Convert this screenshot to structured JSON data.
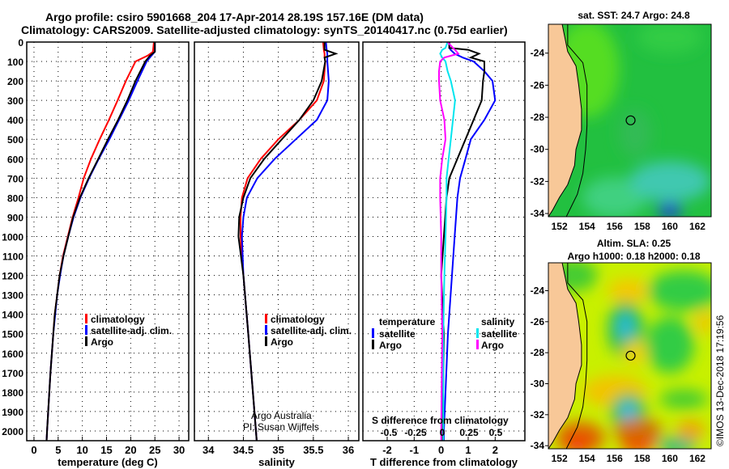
{
  "title_line1": "Argo profile: csiro 5901668_204 17-Apr-2014 28.19S 157.16E (DM data)",
  "title_line2": "Climatology: CARS2009. Satellite-adjusted climatology: synTS_20140417.nc (0.75d earlier)",
  "credit": "Argo Australia",
  "pi": "PI: Susan Wijffels",
  "stamp": "©IMOS 13-Dec-2018 17:19:56",
  "colors": {
    "climatology": "#ff0000",
    "satellite": "#0000ff",
    "argo": "#000000",
    "sal_sat": "#00e5ee",
    "sal_argo": "#ff00ff"
  },
  "chart_data": [
    {
      "type": "line",
      "xlabel": "temperature (deg C)",
      "xlim": [
        -1.5,
        32
      ],
      "ylim": [
        2050,
        0
      ],
      "xticks": [
        0,
        5,
        10,
        15,
        20,
        25,
        30
      ],
      "yticks": [
        0,
        100,
        200,
        300,
        400,
        500,
        600,
        700,
        800,
        900,
        1000,
        1100,
        1200,
        1300,
        1400,
        1500,
        1600,
        1700,
        1800,
        1900,
        2000
      ],
      "legend": [
        "climatology",
        "satellite-adj. clim.",
        "Argo"
      ],
      "depth": [
        0,
        50,
        70,
        100,
        200,
        300,
        400,
        500,
        600,
        700,
        800,
        900,
        1000,
        1100,
        1200,
        1300,
        1400,
        1500,
        1700,
        2000,
        2050
      ],
      "series": [
        {
          "name": "climatology",
          "color": "#ff0000",
          "values": [
            24.8,
            24.6,
            23.5,
            21,
            19,
            17.3,
            15.5,
            13.6,
            11.8,
            10.3,
            9.2,
            8,
            7,
            6,
            5.3,
            4.8,
            4.3,
            4,
            3.4,
            2.7,
            2.6
          ]
        },
        {
          "name": "satellite-adj. clim.",
          "color": "#0000ff",
          "values": [
            25,
            25,
            24.3,
            23.3,
            21.4,
            19.6,
            17.6,
            15.6,
            13.4,
            11.4,
            9.6,
            8.2,
            7.1,
            6.1,
            5.4,
            4.8,
            4.4,
            4,
            3.4,
            2.7,
            2.6
          ]
        },
        {
          "name": "Argo",
          "color": "#000000",
          "values": [
            25,
            25,
            24,
            23,
            21,
            19.3,
            17.4,
            15.3,
            13.3,
            11.3,
            9.5,
            8.1,
            7.1,
            6.1,
            5.3,
            4.8,
            4.3,
            4,
            3.4,
            2.7,
            2.6
          ]
        }
      ]
    },
    {
      "type": "line",
      "xlabel": "salinity",
      "xlim": [
        33.8,
        36.15
      ],
      "ylim": [
        2050,
        0
      ],
      "xticks": [
        34,
        34.5,
        35,
        35.5,
        36
      ],
      "legend": [
        "climatology",
        "satellite-adj. clim.",
        "Argo"
      ],
      "depth": [
        0,
        40,
        60,
        80,
        100,
        200,
        300,
        400,
        500,
        600,
        700,
        800,
        900,
        1000,
        1200,
        1500,
        2000,
        2050
      ],
      "series": [
        {
          "name": "climatology",
          "color": "#ff0000",
          "values": [
            35.64,
            35.65,
            35.66,
            35.66,
            35.67,
            35.65,
            35.55,
            35.3,
            35.0,
            34.75,
            34.56,
            34.48,
            34.46,
            34.46,
            34.5,
            34.57,
            34.68,
            34.69
          ]
        },
        {
          "name": "satellite-adj. clim.",
          "color": "#0000ff",
          "values": [
            35.68,
            35.69,
            35.7,
            35.7,
            35.7,
            35.72,
            35.7,
            35.55,
            35.25,
            34.95,
            34.7,
            34.55,
            34.5,
            34.48,
            34.5,
            34.57,
            34.68,
            34.69
          ]
        },
        {
          "name": "Argo",
          "color": "#000000",
          "values": [
            35.66,
            35.66,
            35.82,
            35.66,
            35.67,
            35.62,
            35.5,
            35.3,
            35.05,
            34.8,
            34.6,
            34.5,
            34.44,
            34.43,
            34.5,
            34.57,
            34.68,
            34.69
          ]
        }
      ]
    },
    {
      "type": "line",
      "xlabel": "T difference from climatology",
      "xlabel_top": "S difference from climatology",
      "xlim": [
        -2.9,
        3.1
      ],
      "ylim": [
        2050,
        0
      ],
      "xticks": [
        -2,
        -1,
        0,
        1,
        2
      ],
      "sticks": [
        -0.5,
        -0.25,
        0,
        0.25,
        0.5
      ],
      "sticklabels": [
        "-0.5",
        "-0.25",
        "0",
        "0.25",
        "0.5"
      ],
      "legend_t": {
        "title": "temperature",
        "items": [
          "satellite",
          "Argo"
        ]
      },
      "legend_s": {
        "title": "salinity",
        "items": [
          "satellite",
          "Argo"
        ]
      },
      "depth": [
        0,
        30,
        40,
        60,
        80,
        100,
        150,
        200,
        300,
        400,
        500,
        600,
        700,
        800,
        1000,
        1200,
        1500,
        2000,
        2050
      ],
      "series": [
        {
          "name": "T satellite",
          "color": "#0000ff",
          "unit": "T",
          "values": [
            0.3,
            0.3,
            0.35,
            0.5,
            0.8,
            1.2,
            1.6,
            1.9,
            2.0,
            1.6,
            1.1,
            0.9,
            0.7,
            0.6,
            0.5,
            0.4,
            0.25,
            0.1,
            0.1
          ]
        },
        {
          "name": "T Argo",
          "color": "#000000",
          "unit": "T",
          "values": [
            0.3,
            0.3,
            1.0,
            1.4,
            1.1,
            1.6,
            1.6,
            1.55,
            1.5,
            1.2,
            0.9,
            0.6,
            0.3,
            0.2,
            0.1,
            0.0,
            0.1,
            0.05,
            0.05
          ]
        },
        {
          "name": "S satellite",
          "color": "#00e5ee",
          "unit": "S",
          "values": [
            0.05,
            0.03,
            0.0,
            -0.02,
            0.0,
            0.03,
            0.05,
            0.08,
            0.12,
            0.1,
            0.08,
            0.06,
            0.04,
            0.04,
            0.03,
            0.02,
            0.01,
            0.01,
            0.01
          ]
        },
        {
          "name": "S Argo",
          "color": "#ff00ff",
          "unit": "S",
          "values": [
            0.05,
            0.1,
            0.12,
            0.15,
            0.02,
            -0.02,
            -0.03,
            -0.03,
            -0.02,
            0.02,
            0.03,
            0.0,
            -0.02,
            -0.02,
            -0.01,
            -0.01,
            0.0,
            -0.01,
            -0.01
          ]
        }
      ]
    },
    {
      "type": "heatmap",
      "title": "sat. SST: 24.7 Argo: 24.8",
      "xlim": [
        151.2,
        163
      ],
      "ylim": [
        -34.2,
        -22.2
      ],
      "xticks": [
        152,
        154,
        156,
        158,
        160,
        162
      ],
      "yticks": [
        -24,
        -26,
        -28,
        -30,
        -32,
        -34
      ],
      "profile": [
        157.16,
        -28.19
      ]
    },
    {
      "type": "heatmap",
      "title": "Altim. SLA: 0.25",
      "subtitle": "Argo h1000: 0.18 h2000: 0.18",
      "xlim": [
        151.2,
        163
      ],
      "ylim": [
        -34.2,
        -22.2
      ],
      "xticks": [
        152,
        154,
        156,
        158,
        160,
        162
      ],
      "yticks": [
        -24,
        -26,
        -28,
        -30,
        -32,
        -34
      ],
      "profile": [
        157.16,
        -28.19
      ]
    }
  ]
}
